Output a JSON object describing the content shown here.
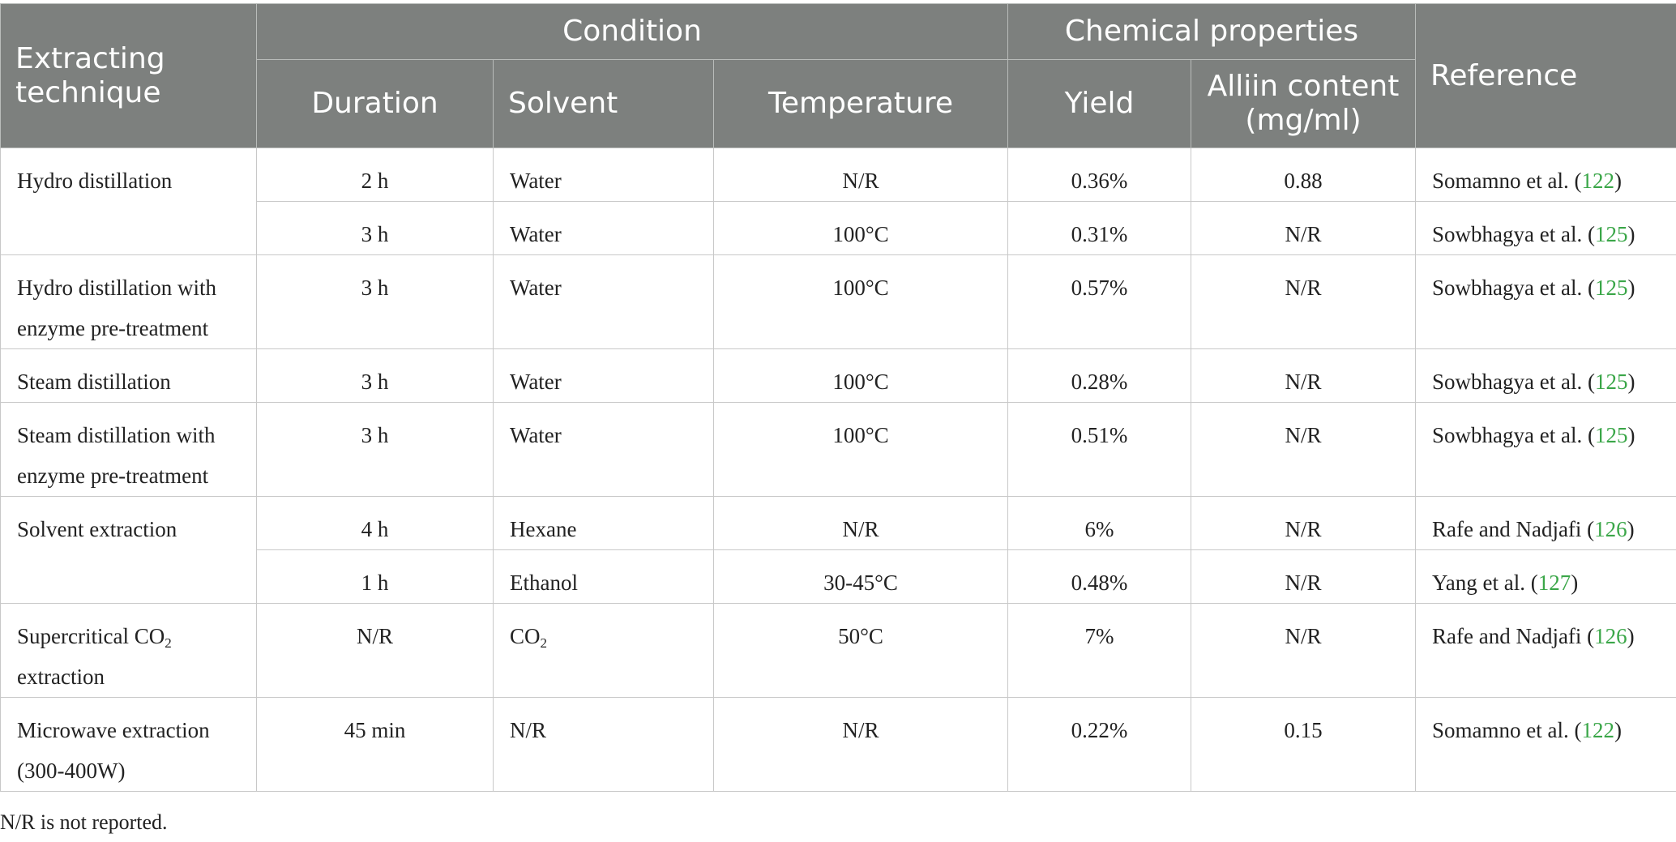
{
  "headers": {
    "technique": "Extracting technique",
    "condition": "Condition",
    "chemical": "Chemical properties",
    "reference": "Reference",
    "duration": "Duration",
    "solvent": "Solvent",
    "temperature": "Temperature",
    "yield": "Yield",
    "alliin": "Alliin content (mg/ml)"
  },
  "rows": [
    {
      "duration": "2 h",
      "solvent": "Water",
      "temperature": "N/R",
      "yield": "0.36%",
      "alliin": "0.88",
      "ref_author": "Somamno et al. (",
      "ref_num": "122",
      "ref_close": ")"
    },
    {
      "duration": "3 h",
      "solvent": "Water",
      "temperature": "100°C",
      "yield": "0.31%",
      "alliin": "N/R",
      "ref_author": "Sowbhagya et al. (",
      "ref_num": "125",
      "ref_close": ")"
    },
    {
      "technique": "Hydro distillation with enzyme pre-treatment",
      "duration": "3 h",
      "solvent": "Water",
      "temperature": "100°C",
      "yield": "0.57%",
      "alliin": "N/R",
      "ref_author": "Sowbhagya et al. (",
      "ref_num": "125",
      "ref_close": ")"
    },
    {
      "technique": "Steam distillation",
      "duration": "3 h",
      "solvent": "Water",
      "temperature": "100°C",
      "yield": "0.28%",
      "alliin": "N/R",
      "ref_author": "Sowbhagya et al. (",
      "ref_num": "125",
      "ref_close": ")"
    },
    {
      "technique": "Steam distillation with enzyme pre-treatment",
      "duration": "3 h",
      "solvent": "Water",
      "temperature": "100°C",
      "yield": "0.51%",
      "alliin": "N/R",
      "ref_author": "Sowbhagya et al. (",
      "ref_num": "125",
      "ref_close": ")"
    },
    {
      "duration": "4 h",
      "solvent": "Hexane",
      "temperature": "N/R",
      "yield": "6%",
      "alliin": "N/R",
      "ref_author": "Rafe and Nadjafi (",
      "ref_num": "126",
      "ref_close": ")"
    },
    {
      "duration": "1 h",
      "solvent": "Ethanol",
      "temperature": "30-45°C",
      "yield": "0.48%",
      "alliin": "N/R",
      "ref_author": "Yang et al. (",
      "ref_num": "127",
      "ref_close": ")"
    },
    {
      "technique_pre": "Supercritical CO",
      "technique_sub": "2",
      "technique_post": " extraction",
      "duration": "N/R",
      "solvent_pre": "CO",
      "solvent_sub": "2",
      "temperature": "50°C",
      "yield": "7%",
      "alliin": "N/R",
      "ref_author": "Rafe and Nadjafi (",
      "ref_num": "126",
      "ref_close": ")"
    },
    {
      "technique": "Microwave extraction (300-400W)",
      "duration": "45 min",
      "solvent": "N/R",
      "temperature": "N/R",
      "yield": "0.22%",
      "alliin": "0.15",
      "ref_author": "Somamno et al. (",
      "ref_num": "122",
      "ref_close": ")"
    }
  ],
  "group_labels": {
    "hydro": "Hydro distillation",
    "solvent": "Solvent extraction"
  },
  "footnote": "N/R is not reported."
}
